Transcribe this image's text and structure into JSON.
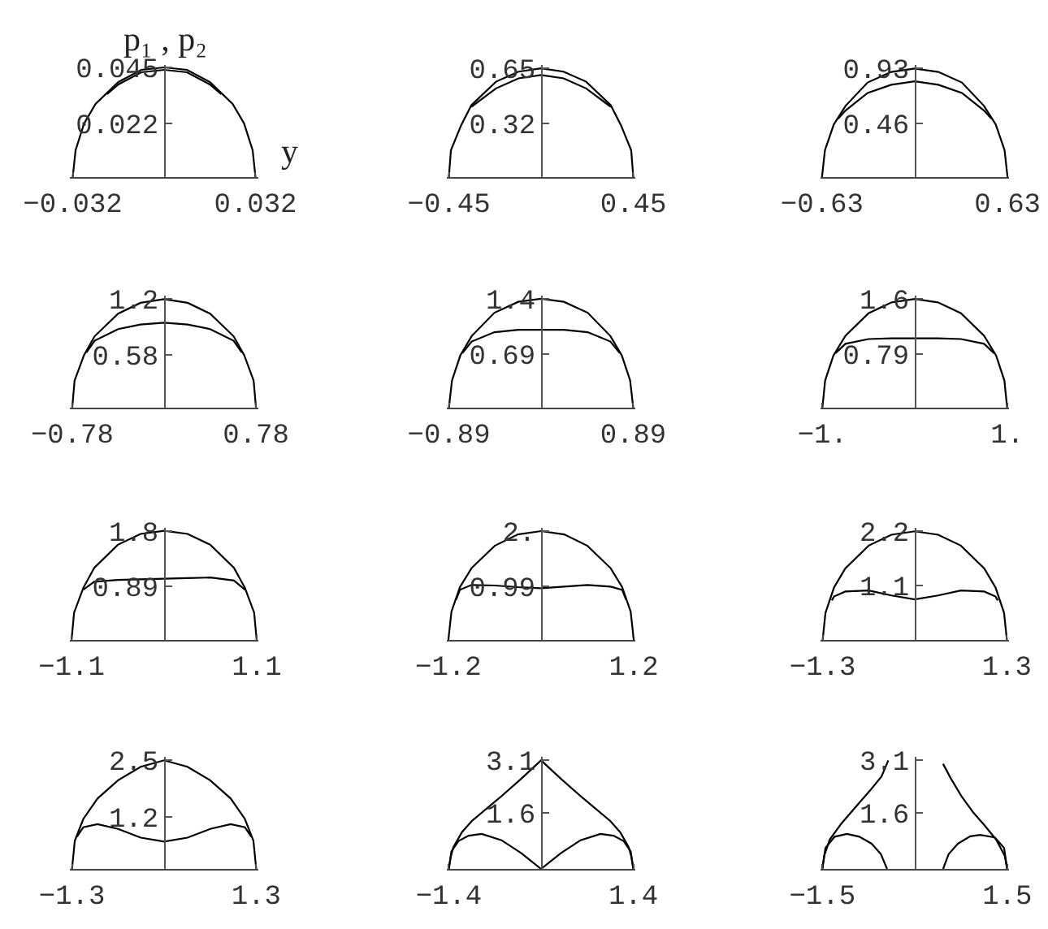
{
  "chart_data": [
    {
      "type": "line",
      "xlabel": "y",
      "ylabel": "p₁ , p₂",
      "x": [
        -0.032,
        -0.031,
        -0.028,
        -0.024,
        -0.016,
        -0.008,
        0,
        0.008,
        0.016,
        0.024,
        0.028,
        0.031,
        0.032
      ],
      "series": [
        {
          "color": "#000000",
          "values": [
            0,
            0.011,
            0.022,
            0.03,
            0.039,
            0.044,
            0.045,
            0.044,
            0.039,
            0.03,
            0.022,
            0.011,
            0
          ]
        },
        {
          "color": "#000000",
          "x": [
            -0.02,
            -0.016,
            -0.008,
            0,
            0.008,
            0.016,
            0.02
          ],
          "values": [
            0.034,
            0.038,
            0.043,
            0.044,
            0.043,
            0.038,
            0.034
          ]
        }
      ],
      "xlim": [
        -0.033,
        0.033
      ],
      "ylim": [
        0,
        0.046
      ],
      "xticks": [
        {
          "value": -0.032,
          "label": "−0.032"
        },
        0.032
      ],
      "yticks": [
        0.022,
        0.045
      ]
    },
    {
      "type": "line",
      "x": [
        -0.45,
        -0.44,
        -0.39,
        -0.34,
        -0.22,
        -0.11,
        0,
        0.11,
        0.22,
        0.34,
        0.39,
        0.44,
        0.45
      ],
      "series": [
        {
          "color": "#000000",
          "values": [
            0,
            0.16,
            0.31,
            0.43,
            0.57,
            0.63,
            0.65,
            0.63,
            0.57,
            0.43,
            0.31,
            0.16,
            0
          ]
        },
        {
          "color": "#000000",
          "x": [
            -0.34,
            -0.22,
            -0.11,
            0,
            0.11,
            0.22,
            0.34
          ],
          "values": [
            0.42,
            0.53,
            0.59,
            0.61,
            0.59,
            0.53,
            0.42
          ]
        }
      ],
      "xlim": [
        -0.46,
        0.46
      ],
      "ylim": [
        0,
        0.67
      ],
      "xticks": [
        {
          "value": -0.45,
          "label": "−0.45"
        },
        0.45
      ],
      "yticks": [
        0.32,
        0.65
      ]
    },
    {
      "type": "line",
      "x": [
        -0.63,
        -0.61,
        -0.55,
        -0.47,
        -0.32,
        -0.16,
        0,
        0.16,
        0.32,
        0.47,
        0.55,
        0.61,
        0.63
      ],
      "series": [
        {
          "color": "#000000",
          "values": [
            0,
            0.23,
            0.45,
            0.61,
            0.81,
            0.9,
            0.93,
            0.9,
            0.81,
            0.61,
            0.45,
            0.23,
            0
          ]
        },
        {
          "color": "#000000",
          "x": [
            -0.52,
            -0.47,
            -0.32,
            -0.16,
            0,
            0.16,
            0.32,
            0.47,
            0.52
          ],
          "values": [
            0.5,
            0.57,
            0.72,
            0.79,
            0.82,
            0.79,
            0.72,
            0.57,
            0.5
          ]
        }
      ],
      "xlim": [
        -0.64,
        0.64
      ],
      "ylim": [
        0,
        0.96
      ],
      "xticks": [
        {
          "value": -0.63,
          "label": "−0.63"
        },
        0.63
      ],
      "yticks": [
        0.46,
        0.93
      ]
    },
    {
      "type": "line",
      "x": [
        -0.78,
        -0.76,
        -0.68,
        -0.59,
        -0.39,
        -0.2,
        0,
        0.2,
        0.39,
        0.59,
        0.68,
        0.76,
        0.78
      ],
      "series": [
        {
          "color": "#000000",
          "values": [
            0,
            0.3,
            0.58,
            0.79,
            1.04,
            1.16,
            1.2,
            1.16,
            1.04,
            0.79,
            0.58,
            0.3,
            0
          ]
        },
        {
          "color": "#000000",
          "x": [
            -0.66,
            -0.59,
            -0.39,
            -0.2,
            0,
            0.2,
            0.39,
            0.59,
            0.66
          ],
          "values": [
            0.61,
            0.74,
            0.87,
            0.92,
            0.94,
            0.92,
            0.87,
            0.74,
            0.61
          ]
        }
      ],
      "xlim": [
        -0.8,
        0.8
      ],
      "ylim": [
        0,
        1.24
      ],
      "xticks": [
        {
          "value": -0.78,
          "label": "−0.78"
        },
        0.78
      ],
      "yticks": [
        0.58,
        1.2
      ]
    },
    {
      "type": "line",
      "x": [
        -0.89,
        -0.86,
        -0.78,
        -0.67,
        -0.45,
        -0.22,
        0,
        0.22,
        0.45,
        0.67,
        0.78,
        0.86,
        0.89
      ],
      "series": [
        {
          "color": "#000000",
          "values": [
            0,
            0.35,
            0.67,
            0.92,
            1.22,
            1.36,
            1.4,
            1.36,
            1.22,
            0.92,
            0.67,
            0.35,
            0
          ]
        },
        {
          "color": "#000000",
          "x": [
            -0.76,
            -0.67,
            -0.45,
            -0.22,
            0,
            0.22,
            0.45,
            0.67,
            0.76
          ],
          "values": [
            0.7,
            0.85,
            0.97,
            1.0,
            1.0,
            1.0,
            0.97,
            0.85,
            0.7
          ]
        }
      ],
      "xlim": [
        -0.91,
        0.91
      ],
      "ylim": [
        0,
        1.44
      ],
      "xticks": [
        {
          "value": -0.89,
          "label": "−0.89"
        },
        0.89
      ],
      "yticks": [
        0.69,
        1.4
      ]
    },
    {
      "type": "line",
      "x": [
        -1,
        -0.97,
        -0.88,
        -0.75,
        -0.5,
        -0.25,
        0,
        0.25,
        0.5,
        0.75,
        0.88,
        0.97,
        1
      ],
      "series": [
        {
          "color": "#000000",
          "values": [
            0,
            0.4,
            0.77,
            1.06,
            1.39,
            1.55,
            1.6,
            1.55,
            1.39,
            1.06,
            0.77,
            0.4,
            0
          ]
        },
        {
          "color": "#000000",
          "x": [
            -0.86,
            -0.75,
            -0.5,
            -0.25,
            0,
            0.25,
            0.5,
            0.75,
            0.86
          ],
          "values": [
            0.8,
            0.94,
            1.01,
            1.02,
            1.02,
            1.02,
            1.01,
            0.94,
            0.8
          ]
        }
      ],
      "xlim": [
        -1.02,
        1.02
      ],
      "ylim": [
        0,
        1.65
      ],
      "xticks": [
        {
          "value": -1,
          "label": "−1."
        },
        {
          "value": 1,
          "label": "1."
        }
      ],
      "yticks": [
        0.79,
        1.6
      ]
    },
    {
      "type": "line",
      "x": [
        -1.1,
        -1.07,
        -0.96,
        -0.83,
        -0.55,
        -0.28,
        0,
        0.28,
        0.55,
        0.83,
        0.96,
        1.07,
        1.1
      ],
      "series": [
        {
          "color": "#000000",
          "values": [
            0,
            0.45,
            0.86,
            1.19,
            1.57,
            1.75,
            1.8,
            1.75,
            1.57,
            1.19,
            0.86,
            0.45,
            0
          ]
        },
        {
          "color": "#000000",
          "x": [
            -0.96,
            -0.83,
            -0.55,
            -0.28,
            0,
            0.28,
            0.55,
            0.83,
            0.96
          ],
          "values": [
            0.83,
            0.96,
            0.99,
            1.0,
            1.01,
            1.02,
            1.03,
            0.98,
            0.83
          ]
        }
      ],
      "xlim": [
        -1.12,
        1.12
      ],
      "ylim": [
        0,
        1.85
      ],
      "xticks": [
        {
          "value": -1.1,
          "label": "−1.1"
        },
        1.1
      ],
      "yticks": [
        0.89,
        1.8
      ]
    },
    {
      "type": "line",
      "x": [
        -1.2,
        -1.16,
        -1.05,
        -0.9,
        -0.6,
        -0.3,
        0,
        0.3,
        0.6,
        0.9,
        1.05,
        1.16,
        1.2
      ],
      "series": [
        {
          "color": "#000000",
          "values": [
            0,
            0.52,
            0.97,
            1.32,
            1.73,
            1.94,
            2.0,
            1.94,
            1.73,
            1.32,
            0.97,
            0.52,
            0
          ]
        },
        {
          "color": "#000000",
          "x": [
            -1.1,
            -1.05,
            -0.9,
            -0.6,
            -0.3,
            0,
            0.3,
            0.6,
            0.9,
            1.05,
            1.1
          ],
          "values": [
            0.74,
            0.92,
            1.01,
            1.0,
            0.97,
            0.95,
            0.98,
            1.01,
            0.98,
            0.92,
            0.74
          ]
        }
      ],
      "xlim": [
        -1.22,
        1.22
      ],
      "ylim": [
        0,
        2.06
      ],
      "xticks": [
        {
          "value": -1.2,
          "label": "−1.2"
        },
        1.2
      ],
      "yticks": [
        0.99,
        {
          "value": 2,
          "label": "2."
        }
      ]
    },
    {
      "type": "line",
      "x": [
        -1.3,
        -1.26,
        -1.14,
        -0.98,
        -0.65,
        -0.33,
        0,
        0.33,
        0.65,
        0.98,
        1.14,
        1.26,
        1.3
      ],
      "series": [
        {
          "color": "#000000",
          "values": [
            0,
            0.55,
            1.06,
            1.45,
            1.91,
            2.13,
            2.2,
            2.13,
            1.91,
            1.45,
            1.06,
            0.55,
            0
          ]
        },
        {
          "color": "#000000",
          "x": [
            -1.17,
            -1.14,
            -0.98,
            -0.65,
            -0.33,
            0,
            0.33,
            0.65,
            0.98,
            1.14,
            1.17
          ],
          "values": [
            0.8,
            0.88,
            0.98,
            1.0,
            0.9,
            0.82,
            0.9,
            1.0,
            0.98,
            0.88,
            0.8
          ]
        }
      ],
      "xlim": [
        -1.33,
        1.33
      ],
      "ylim": [
        0,
        2.27
      ],
      "xticks": [
        {
          "value": -1.3,
          "label": "−1.3"
        },
        1.3
      ],
      "yticks": [
        1.1,
        2.2
      ]
    },
    {
      "type": "line",
      "x": [
        -1.3,
        -1.26,
        -1.14,
        -0.94,
        -0.65,
        -0.33,
        0,
        0.33,
        0.65,
        0.94,
        1.14,
        1.26,
        1.3
      ],
      "series": [
        {
          "color": "#000000",
          "values": [
            0,
            0.65,
            1.15,
            1.62,
            2.04,
            2.35,
            2.5,
            2.35,
            2.04,
            1.62,
            1.15,
            0.65,
            0
          ]
        },
        {
          "color": "#000000",
          "x": [
            -1.23,
            -1.14,
            -0.94,
            -0.65,
            -0.33,
            0,
            0.33,
            0.65,
            0.94,
            1.14,
            1.23
          ],
          "values": [
            0.74,
            0.96,
            1.03,
            0.92,
            0.72,
            0.63,
            0.72,
            0.92,
            1.03,
            0.96,
            0.74
          ]
        }
      ],
      "xlim": [
        -1.33,
        1.33
      ],
      "ylim": [
        0,
        2.58
      ],
      "xticks": [
        {
          "value": -1.3,
          "label": "−1.3"
        },
        1.3
      ],
      "yticks": [
        1.2,
        2.5
      ]
    },
    {
      "type": "line",
      "series": [
        {
          "color": "#000000",
          "x": [
            -1.4,
            -1.37,
            -1.33,
            -1.2,
            -1.05,
            -0.63,
            -0.31,
            0,
            0.31,
            0.63,
            1.05,
            1.2,
            1.33,
            1.37,
            1.4
          ],
          "values": [
            0,
            0.35,
            0.62,
            1.05,
            1.37,
            2.03,
            2.56,
            3.1,
            2.56,
            2.03,
            1.37,
            1.05,
            0.62,
            0.35,
            0
          ]
        },
        {
          "color": "#000000",
          "x": [
            -1.4,
            -1.36,
            -1.25,
            -1.1,
            -0.9,
            -0.6,
            -0.3,
            0,
            0.3,
            0.6,
            0.9,
            1.1,
            1.25,
            1.36,
            1.4
          ],
          "values": [
            0,
            0.5,
            0.8,
            0.95,
            1.0,
            0.82,
            0.45,
            0,
            0.45,
            0.82,
            1.0,
            0.95,
            0.8,
            0.5,
            0
          ]
        }
      ],
      "xlim": [
        -1.43,
        1.43
      ],
      "ylim": [
        0,
        3.2
      ],
      "xticks": [
        {
          "value": -1.4,
          "label": "−1.4"
        },
        1.4
      ],
      "yticks": [
        1.6,
        3.1
      ]
    },
    {
      "type": "line",
      "series": [
        {
          "color": "#000000",
          "x": [
            -1.5,
            -1.47,
            -1.38,
            -1.19,
            -0.96,
            -0.73,
            -0.54,
            -0.43,
            0,
            0.46,
            0.58,
            0.76,
            0.95,
            1.14,
            1.32,
            1.46,
            1.5
          ],
          "values": [
            0,
            0.38,
            0.84,
            1.3,
            1.77,
            2.23,
            2.64,
            3.1,
            null,
            3.0,
            2.6,
            2.07,
            1.61,
            1.23,
            0.84,
            0.38,
            0
          ]
        },
        {
          "color": "#000000",
          "x": [
            -1.5,
            -1.45,
            -1.3,
            -1.1,
            -0.9,
            -0.7,
            -0.55,
            -0.45,
            0,
            0.46,
            0.55,
            0.7,
            0.9,
            1.06,
            1.3,
            1.45,
            1.5
          ],
          "values": [
            0,
            0.6,
            0.92,
            1.0,
            0.92,
            0.72,
            0.42,
            0,
            null,
            0,
            0.42,
            0.72,
            0.93,
            0.97,
            0.9,
            0.6,
            0
          ]
        }
      ],
      "xlim": [
        -1.53,
        1.53
      ],
      "ylim": [
        0,
        3.2
      ],
      "xticks": [
        {
          "value": -1.5,
          "label": "−1.5"
        },
        1.5
      ],
      "yticks": [
        1.6,
        3.1
      ]
    }
  ]
}
